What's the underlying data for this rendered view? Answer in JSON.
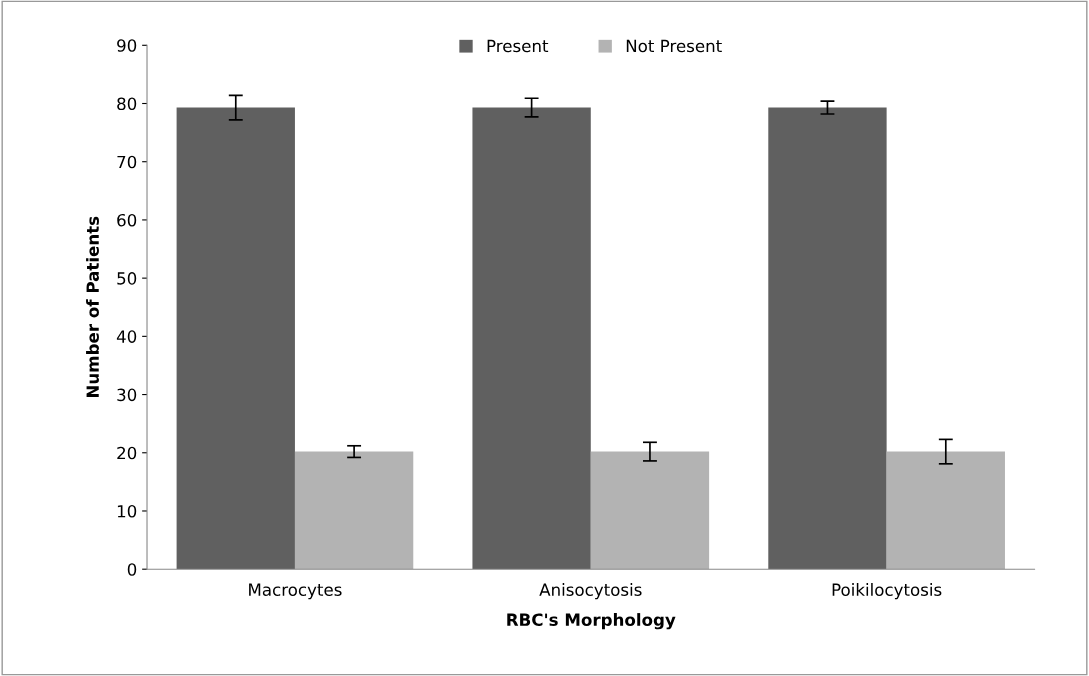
{
  "chart_data": {
    "type": "bar",
    "xlabel": "RBC's Morphology",
    "ylabel": "Number of Patients",
    "categories": [
      "Macrocytes",
      "Anisocytosis",
      "Poikilocytosis"
    ],
    "series": [
      {
        "name": "Present",
        "color": "#606060",
        "values": [
          79.3,
          79.3,
          79.3
        ],
        "errors": [
          2.1,
          1.6,
          1.1
        ]
      },
      {
        "name": "Not Present",
        "color": "#b3b3b3",
        "values": [
          20.2,
          20.2,
          20.2
        ],
        "errors": [
          1.0,
          1.6,
          2.1
        ]
      }
    ],
    "ylim": [
      0,
      90
    ],
    "yticks": [
      0,
      10,
      20,
      30,
      40,
      50,
      60,
      70,
      80,
      90
    ],
    "grid": false,
    "legend": "top"
  }
}
